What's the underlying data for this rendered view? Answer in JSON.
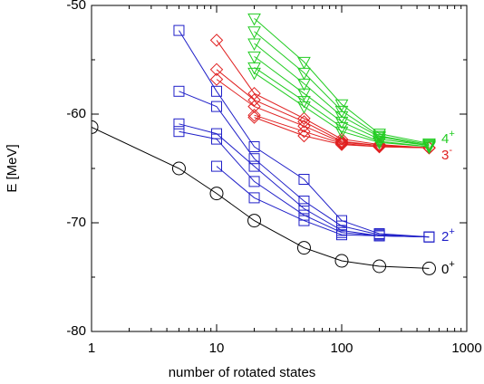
{
  "chart_data": {
    "type": "line",
    "xlabel": "number of rotated states",
    "ylabel": "E [MeV]",
    "xscale": "log",
    "xlim": [
      1,
      1000
    ],
    "ylim": [
      -80,
      -50
    ],
    "xticks": [
      1,
      10,
      100,
      1000
    ],
    "yticks": [
      -80,
      -70,
      -60,
      -50
    ],
    "minor_xticks": [
      2,
      3,
      4,
      5,
      6,
      7,
      8,
      9,
      20,
      30,
      40,
      50,
      60,
      70,
      80,
      90,
      200,
      300,
      400,
      500,
      600,
      700,
      800,
      900
    ],
    "minor_yticks": [
      -75,
      -65,
      -55
    ],
    "x": [
      1,
      5,
      10,
      20,
      50,
      100,
      200,
      500
    ],
    "series": [
      {
        "color": "#000000",
        "marker": "circle",
        "values": [
          -61.2,
          -65.0,
          -67.3,
          -69.8,
          -72.3,
          -73.5,
          -74.0,
          -74.2
        ]
      },
      {
        "color": "#2020c8",
        "marker": "square",
        "values": [
          null,
          -52.3,
          -57.9,
          -63.0,
          -66.0,
          -69.8,
          -71.0,
          -71.3
        ]
      },
      {
        "color": "#2020c8",
        "marker": "square",
        "values": [
          null,
          -57.9,
          -59.3,
          -64.1,
          -68.0,
          -70.3,
          -71.1,
          -71.3
        ]
      },
      {
        "color": "#2020c8",
        "marker": "square",
        "values": [
          null,
          -60.9,
          -61.8,
          -64.8,
          -68.7,
          -70.7,
          -71.2,
          -71.3
        ]
      },
      {
        "color": "#2020c8",
        "marker": "square",
        "values": [
          null,
          -61.6,
          -62.3,
          -66.2,
          -69.3,
          -70.9,
          -71.2,
          -71.3
        ]
      },
      {
        "color": "#2020c8",
        "marker": "square",
        "values": [
          null,
          null,
          -64.8,
          -67.7,
          -69.8,
          -71.1,
          -71.2,
          -71.3
        ]
      },
      {
        "color": "#e02020",
        "marker": "diamond",
        "values": [
          null,
          null,
          -53.2,
          -58.1,
          -60.4,
          -62.3,
          -62.8,
          -63.1
        ]
      },
      {
        "color": "#e02020",
        "marker": "diamond",
        "values": [
          null,
          null,
          -55.9,
          -58.7,
          -60.7,
          -62.5,
          -62.9,
          -63.1
        ]
      },
      {
        "color": "#e02020",
        "marker": "diamond",
        "values": [
          null,
          null,
          -56.8,
          -59.3,
          -61.1,
          -62.6,
          -62.9,
          -63.1
        ]
      },
      {
        "color": "#e02020",
        "marker": "diamond",
        "values": [
          null,
          null,
          null,
          -60.1,
          -61.6,
          -62.7,
          -63.0,
          -63.1
        ]
      },
      {
        "color": "#e02020",
        "marker": "diamond",
        "values": [
          null,
          null,
          null,
          -60.3,
          -62.0,
          -62.8,
          -63.0,
          -63.1
        ]
      },
      {
        "color": "#22cc22",
        "marker": "triangle-down",
        "values": [
          null,
          null,
          null,
          -51.2,
          -55.2,
          -59.1,
          -61.8,
          -62.7
        ]
      },
      {
        "color": "#22cc22",
        "marker": "triangle-down",
        "values": [
          null,
          null,
          null,
          -52.4,
          -56.2,
          -59.7,
          -62.0,
          -62.8
        ]
      },
      {
        "color": "#22cc22",
        "marker": "triangle-down",
        "values": [
          null,
          null,
          null,
          -53.5,
          -57.2,
          -60.2,
          -62.1,
          -62.9
        ]
      },
      {
        "color": "#22cc22",
        "marker": "triangle-down",
        "values": [
          null,
          null,
          null,
          -54.7,
          -58.1,
          -60.7,
          -62.3,
          -62.9
        ]
      },
      {
        "color": "#22cc22",
        "marker": "triangle-down",
        "values": [
          null,
          null,
          null,
          -55.7,
          -58.8,
          -61.2,
          -62.5,
          -63.0
        ]
      },
      {
        "color": "#22cc22",
        "marker": "triangle-down",
        "values": [
          null,
          null,
          null,
          -56.2,
          -59.3,
          -61.6,
          -62.6,
          -63.0
        ]
      }
    ],
    "annotations": [
      {
        "text": "4",
        "sup": "+",
        "color": "#22cc22"
      },
      {
        "text": "3",
        "sup": "-",
        "color": "#e02020"
      },
      {
        "text": "2",
        "sup": "+",
        "color": "#2020c8"
      },
      {
        "text": "0",
        "sup": "+",
        "color": "#000000"
      }
    ]
  }
}
